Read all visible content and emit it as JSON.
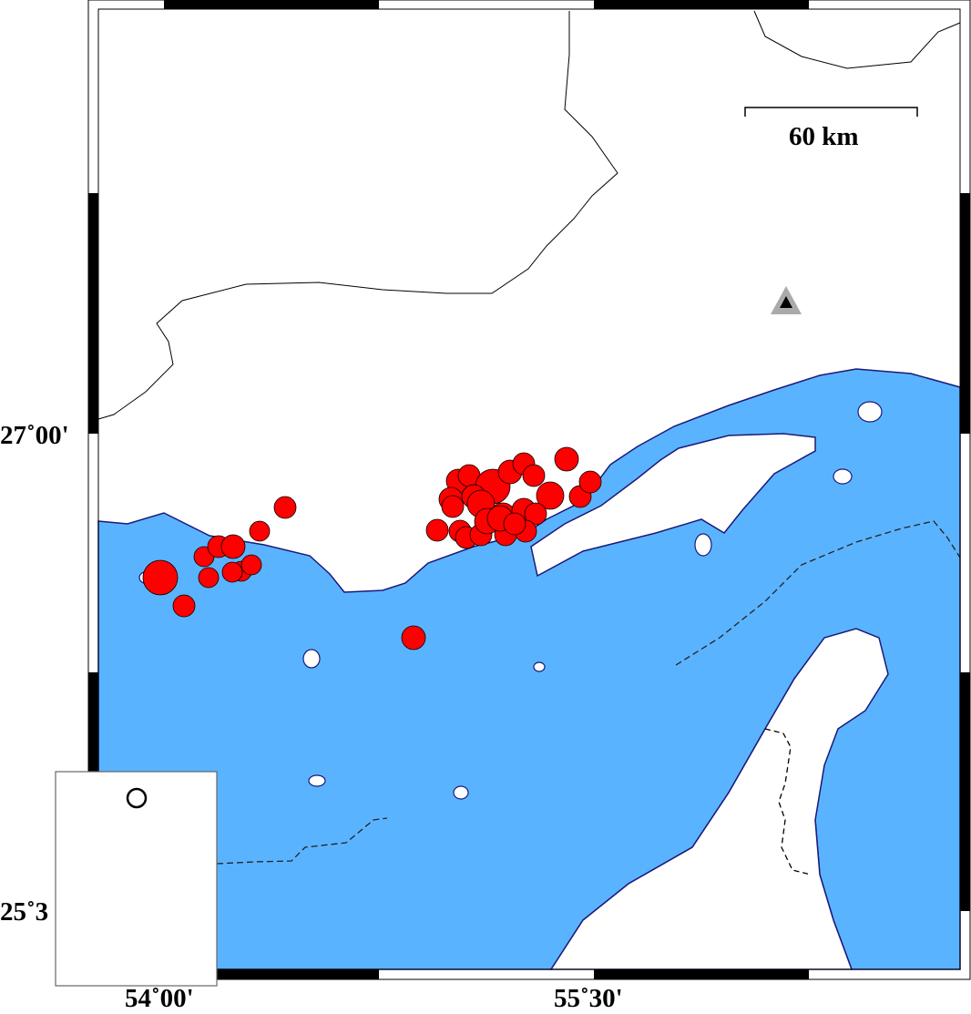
{
  "map": {
    "scale_bar_label": "60 km",
    "lat_labels": [
      "27˚00'",
      "25˚3"
    ],
    "lon_labels": [
      "54˚00'",
      "55˚30'"
    ],
    "colors": {
      "sea": "#5ab3fe",
      "land": "#ffffff",
      "event": "#ff0000",
      "coast": "#1a1a7a",
      "station": "#000000"
    },
    "symbols": {
      "events": "red circles sized by magnitude",
      "station": "triangle-icon",
      "inset_marker": "circle-icon"
    }
  }
}
